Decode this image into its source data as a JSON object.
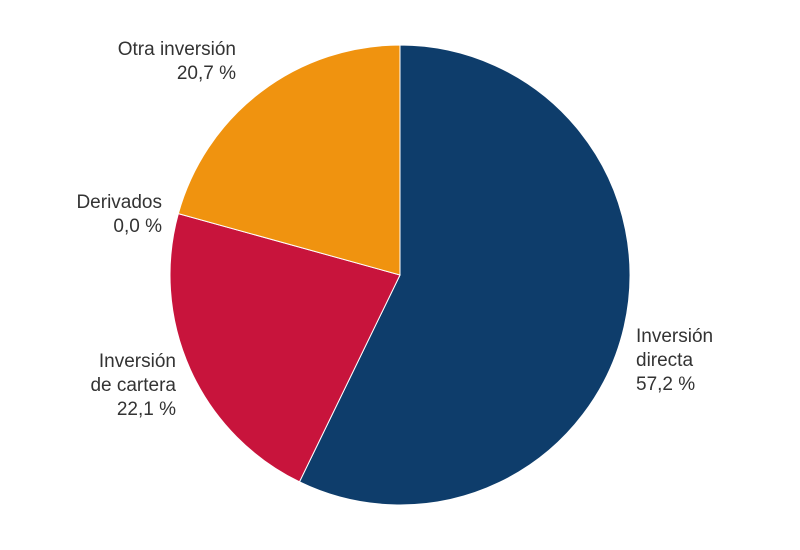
{
  "chart_data": {
    "type": "pie",
    "title": "",
    "start": "top",
    "direction": "clockwise",
    "slices": [
      {
        "label": [
          "Inversión",
          "directa"
        ],
        "value_label": "57,2 %",
        "value": 57.2,
        "color": "#0e3d6b"
      },
      {
        "label": [
          "Inversión",
          "de cartera"
        ],
        "value_label": "22,1 %",
        "value": 22.1,
        "color": "#c8143c"
      },
      {
        "label": [
          "Derivados"
        ],
        "value_label": "0,0 %",
        "value": 0.0,
        "color": "#7f7f7f"
      },
      {
        "label": [
          "Otra inversión"
        ],
        "value_label": "20,7 %",
        "value": 20.7,
        "color": "#f0930f"
      }
    ]
  }
}
